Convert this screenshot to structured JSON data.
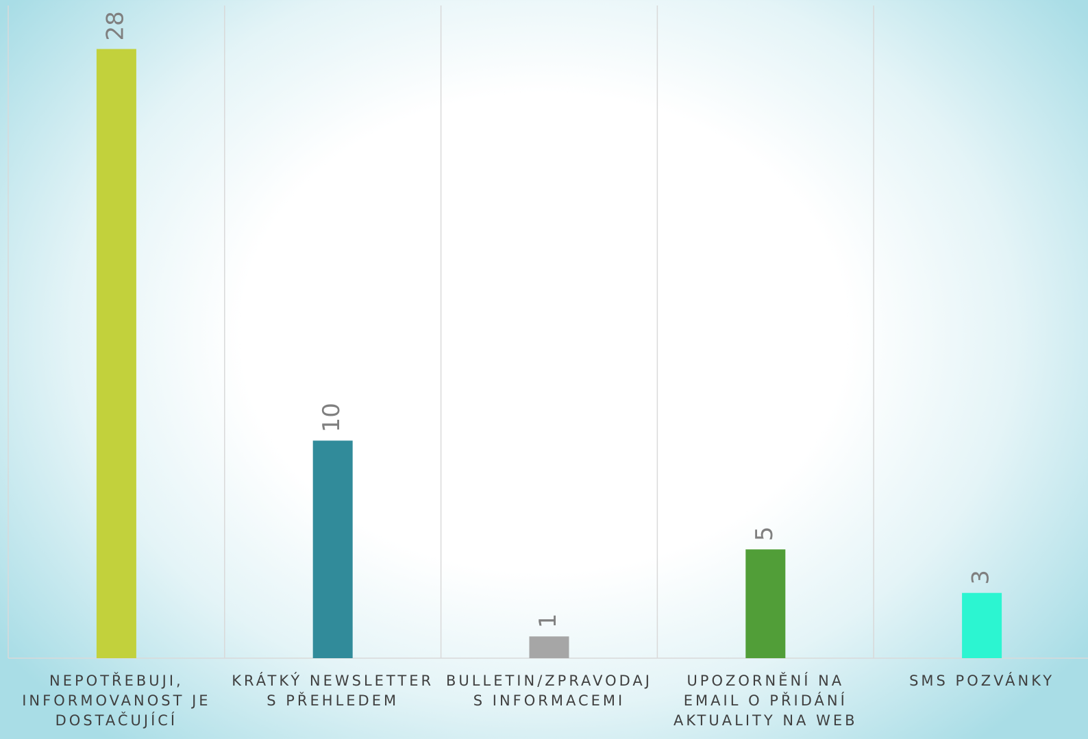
{
  "chart_data": {
    "type": "bar",
    "categories": [
      "NEPOTŘEBUJI, INFORMOVANOST JE DOSTAČUJÍCÍ",
      "KRÁTKÝ NEWSLETTER S PŘEHLEDEM",
      "BULLETIN/ZPRAVODAJ S INFORMACEMI",
      "UPOZORNĚNÍ NA EMAIL O PŘIDÁNÍ AKTUALITY NA WEB",
      "SMS POZVÁNKY"
    ],
    "values": [
      28,
      10,
      1,
      5,
      3
    ],
    "colors": [
      "#c2d13c",
      "#318b9a",
      "#a6a6a6",
      "#519e38",
      "#2cf5d1"
    ],
    "ylim": [
      0,
      30
    ]
  }
}
